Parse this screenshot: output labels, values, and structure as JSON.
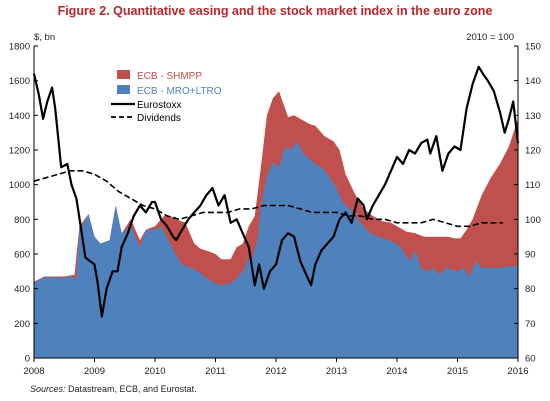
{
  "title": "Figure 2. Quantitative easing and the stock market index in the euro zone",
  "source_prefix": "Sources:",
  "source_text": " Datastream, ECB, and Eurostat.",
  "colors": {
    "shmpp": "#c0504d",
    "mro": "#4f81bd",
    "title": "#b8262a",
    "eurostoxx": "#000000",
    "dividends": "#000000",
    "legend_shmpp_text": "#c0504d",
    "legend_mro_text": "#4f81bd"
  },
  "chart_data": {
    "type": "area",
    "title": "Figure 2. Quantitative easing and the stock market index in the euro zone",
    "y_left_unit": "$, bn",
    "y_right_unit": "2010 = 100",
    "ylim_left": [
      0,
      1800
    ],
    "ylim_right": [
      60,
      150
    ],
    "xlim": [
      2008,
      2016
    ],
    "x_ticks": [
      "2008",
      "2009",
      "2010",
      "2011",
      "2012",
      "2013",
      "2014",
      "2015",
      "2016"
    ],
    "y_left_ticks": [
      "0",
      "200",
      "400",
      "600",
      "800",
      "1000",
      "1200",
      "1400",
      "1600",
      "1800"
    ],
    "y_right_ticks": [
      "60",
      "70",
      "80",
      "90",
      "100",
      "110",
      "120",
      "130",
      "140",
      "150"
    ],
    "grid": false,
    "legend_position": "top-left",
    "series": [
      {
        "name": "ECB - SHMPP",
        "kind": "stacked-area",
        "axis": "left",
        "points": [
          [
            2008.0,
            440
          ],
          [
            2008.17,
            470
          ],
          [
            2008.33,
            470
          ],
          [
            2008.5,
            470
          ],
          [
            2008.67,
            480
          ],
          [
            2008.75,
            760
          ],
          [
            2008.9,
            830
          ],
          [
            2009.0,
            700
          ],
          [
            2009.1,
            660
          ],
          [
            2009.25,
            680
          ],
          [
            2009.35,
            880
          ],
          [
            2009.45,
            720
          ],
          [
            2009.6,
            800
          ],
          [
            2009.75,
            680
          ],
          [
            2009.85,
            740
          ],
          [
            2010.0,
            760
          ],
          [
            2010.15,
            820
          ],
          [
            2010.25,
            820
          ],
          [
            2010.35,
            800
          ],
          [
            2010.5,
            780
          ],
          [
            2010.65,
            660
          ],
          [
            2010.75,
            630
          ],
          [
            2010.85,
            620
          ],
          [
            2011.0,
            600
          ],
          [
            2011.1,
            570
          ],
          [
            2011.25,
            570
          ],
          [
            2011.35,
            640
          ],
          [
            2011.45,
            660
          ],
          [
            2011.55,
            760
          ],
          [
            2011.65,
            820
          ],
          [
            2011.75,
            1100
          ],
          [
            2011.85,
            1400
          ],
          [
            2011.95,
            1500
          ],
          [
            2012.05,
            1540
          ],
          [
            2012.2,
            1390
          ],
          [
            2012.3,
            1400
          ],
          [
            2012.4,
            1380
          ],
          [
            2012.55,
            1350
          ],
          [
            2012.65,
            1340
          ],
          [
            2012.8,
            1280
          ],
          [
            2012.95,
            1250
          ],
          [
            2013.05,
            1200
          ],
          [
            2013.15,
            1060
          ],
          [
            2013.3,
            950
          ],
          [
            2013.45,
            860
          ],
          [
            2013.6,
            820
          ],
          [
            2013.75,
            790
          ],
          [
            2013.9,
            780
          ],
          [
            2014.0,
            760
          ],
          [
            2014.15,
            730
          ],
          [
            2014.3,
            720
          ],
          [
            2014.45,
            700
          ],
          [
            2014.55,
            700
          ],
          [
            2014.7,
            700
          ],
          [
            2014.85,
            700
          ],
          [
            2014.95,
            690
          ],
          [
            2015.05,
            690
          ],
          [
            2015.15,
            740
          ],
          [
            2015.25,
            800
          ],
          [
            2015.4,
            940
          ],
          [
            2015.55,
            1040
          ],
          [
            2015.7,
            1120
          ],
          [
            2015.85,
            1220
          ],
          [
            2016.0,
            1380
          ]
        ]
      },
      {
        "name": "ECB - MRO+LTRO",
        "kind": "area",
        "axis": "left",
        "points": [
          [
            2008.0,
            440
          ],
          [
            2008.1,
            450
          ],
          [
            2008.17,
            470
          ],
          [
            2008.25,
            460
          ],
          [
            2008.33,
            470
          ],
          [
            2008.45,
            460
          ],
          [
            2008.6,
            470
          ],
          [
            2008.7,
            460
          ],
          [
            2008.75,
            740
          ],
          [
            2008.9,
            830
          ],
          [
            2009.0,
            700
          ],
          [
            2009.1,
            660
          ],
          [
            2009.25,
            680
          ],
          [
            2009.35,
            880
          ],
          [
            2009.45,
            720
          ],
          [
            2009.6,
            760
          ],
          [
            2009.75,
            640
          ],
          [
            2009.85,
            740
          ],
          [
            2010.0,
            740
          ],
          [
            2010.1,
            760
          ],
          [
            2010.25,
            660
          ],
          [
            2010.4,
            560
          ],
          [
            2010.5,
            530
          ],
          [
            2010.6,
            520
          ],
          [
            2010.75,
            490
          ],
          [
            2010.9,
            450
          ],
          [
            2011.0,
            430
          ],
          [
            2011.1,
            420
          ],
          [
            2011.25,
            430
          ],
          [
            2011.35,
            460
          ],
          [
            2011.45,
            500
          ],
          [
            2011.55,
            580
          ],
          [
            2011.6,
            560
          ],
          [
            2011.7,
            700
          ],
          [
            2011.75,
            880
          ],
          [
            2011.85,
            1050
          ],
          [
            2011.95,
            1130
          ],
          [
            2012.05,
            1100
          ],
          [
            2012.15,
            1220
          ],
          [
            2012.25,
            1200
          ],
          [
            2012.35,
            1250
          ],
          [
            2012.45,
            1180
          ],
          [
            2012.55,
            1150
          ],
          [
            2012.65,
            1120
          ],
          [
            2012.75,
            1100
          ],
          [
            2012.85,
            1060
          ],
          [
            2013.0,
            980
          ],
          [
            2013.1,
            900
          ],
          [
            2013.25,
            850
          ],
          [
            2013.4,
            780
          ],
          [
            2013.55,
            720
          ],
          [
            2013.7,
            700
          ],
          [
            2013.85,
            680
          ],
          [
            2014.0,
            660
          ],
          [
            2014.1,
            620
          ],
          [
            2014.2,
            560
          ],
          [
            2014.3,
            620
          ],
          [
            2014.4,
            520
          ],
          [
            2014.5,
            500
          ],
          [
            2014.6,
            520
          ],
          [
            2014.7,
            480
          ],
          [
            2014.8,
            520
          ],
          [
            2014.9,
            510
          ],
          [
            2015.0,
            500
          ],
          [
            2015.1,
            520
          ],
          [
            2015.2,
            470
          ],
          [
            2015.3,
            560
          ],
          [
            2015.4,
            520
          ],
          [
            2015.55,
            520
          ],
          [
            2015.7,
            520
          ],
          [
            2015.85,
            530
          ],
          [
            2016.0,
            530
          ]
        ]
      },
      {
        "name": "Eurostoxx",
        "kind": "line",
        "axis": "right",
        "points": [
          [
            2008.0,
            142
          ],
          [
            2008.08,
            136
          ],
          [
            2008.15,
            129
          ],
          [
            2008.22,
            134
          ],
          [
            2008.3,
            138
          ],
          [
            2008.35,
            132
          ],
          [
            2008.45,
            115
          ],
          [
            2008.55,
            116
          ],
          [
            2008.62,
            110
          ],
          [
            2008.7,
            106
          ],
          [
            2008.78,
            97
          ],
          [
            2008.85,
            89
          ],
          [
            2008.92,
            88
          ],
          [
            2009.0,
            87
          ],
          [
            2009.05,
            82
          ],
          [
            2009.12,
            72
          ],
          [
            2009.2,
            80
          ],
          [
            2009.3,
            85
          ],
          [
            2009.38,
            85
          ],
          [
            2009.45,
            92
          ],
          [
            2009.55,
            96
          ],
          [
            2009.65,
            101
          ],
          [
            2009.75,
            104
          ],
          [
            2009.85,
            102
          ],
          [
            2009.95,
            105
          ],
          [
            2010.0,
            105
          ],
          [
            2010.1,
            100
          ],
          [
            2010.2,
            98
          ],
          [
            2010.3,
            95
          ],
          [
            2010.35,
            94
          ],
          [
            2010.45,
            97
          ],
          [
            2010.55,
            100
          ],
          [
            2010.65,
            102
          ],
          [
            2010.75,
            104
          ],
          [
            2010.85,
            107
          ],
          [
            2010.95,
            109
          ],
          [
            2011.05,
            104
          ],
          [
            2011.15,
            107
          ],
          [
            2011.25,
            99
          ],
          [
            2011.35,
            100
          ],
          [
            2011.45,
            96
          ],
          [
            2011.55,
            92
          ],
          [
            2011.65,
            81
          ],
          [
            2011.72,
            87
          ],
          [
            2011.8,
            80
          ],
          [
            2011.9,
            85
          ],
          [
            2012.0,
            87
          ],
          [
            2012.1,
            94
          ],
          [
            2012.2,
            96
          ],
          [
            2012.3,
            95
          ],
          [
            2012.4,
            88
          ],
          [
            2012.5,
            84
          ],
          [
            2012.58,
            81
          ],
          [
            2012.65,
            87
          ],
          [
            2012.75,
            91
          ],
          [
            2012.85,
            93
          ],
          [
            2012.95,
            95
          ],
          [
            2013.05,
            100
          ],
          [
            2013.15,
            102
          ],
          [
            2013.25,
            99
          ],
          [
            2013.35,
            106
          ],
          [
            2013.45,
            104
          ],
          [
            2013.5,
            100
          ],
          [
            2013.6,
            104
          ],
          [
            2013.7,
            107
          ],
          [
            2013.8,
            110
          ],
          [
            2013.9,
            114
          ],
          [
            2014.0,
            118
          ],
          [
            2014.1,
            116
          ],
          [
            2014.2,
            120
          ],
          [
            2014.3,
            119
          ],
          [
            2014.4,
            122
          ],
          [
            2014.5,
            123
          ],
          [
            2014.55,
            119
          ],
          [
            2014.65,
            124
          ],
          [
            2014.75,
            114
          ],
          [
            2014.85,
            119
          ],
          [
            2014.95,
            121
          ],
          [
            2015.05,
            120
          ],
          [
            2015.15,
            132
          ],
          [
            2015.25,
            139
          ],
          [
            2015.35,
            144
          ],
          [
            2015.42,
            142
          ],
          [
            2015.5,
            140
          ],
          [
            2015.6,
            137
          ],
          [
            2015.7,
            131
          ],
          [
            2015.78,
            125
          ],
          [
            2015.85,
            129
          ],
          [
            2015.92,
            134
          ],
          [
            2016.0,
            122
          ]
        ]
      },
      {
        "name": "Dividends",
        "kind": "line-dashed",
        "axis": "right",
        "points": [
          [
            2008.0,
            111
          ],
          [
            2008.2,
            112
          ],
          [
            2008.4,
            113
          ],
          [
            2008.6,
            114
          ],
          [
            2008.8,
            114
          ],
          [
            2009.0,
            113
          ],
          [
            2009.2,
            111
          ],
          [
            2009.4,
            108
          ],
          [
            2009.6,
            106
          ],
          [
            2009.8,
            104
          ],
          [
            2010.0,
            103
          ],
          [
            2010.2,
            101
          ],
          [
            2010.4,
            100
          ],
          [
            2010.6,
            101
          ],
          [
            2010.8,
            102
          ],
          [
            2011.0,
            102
          ],
          [
            2011.2,
            102
          ],
          [
            2011.4,
            103
          ],
          [
            2011.6,
            103
          ],
          [
            2011.8,
            104
          ],
          [
            2012.0,
            104
          ],
          [
            2012.2,
            104
          ],
          [
            2012.4,
            103
          ],
          [
            2012.6,
            102
          ],
          [
            2012.8,
            102
          ],
          [
            2013.0,
            102
          ],
          [
            2013.2,
            101
          ],
          [
            2013.4,
            101
          ],
          [
            2013.6,
            100
          ],
          [
            2013.8,
            100
          ],
          [
            2014.0,
            99
          ],
          [
            2014.2,
            99
          ],
          [
            2014.4,
            99
          ],
          [
            2014.6,
            100
          ],
          [
            2014.8,
            99
          ],
          [
            2015.0,
            98
          ],
          [
            2015.2,
            98
          ],
          [
            2015.4,
            99
          ],
          [
            2015.6,
            99
          ],
          [
            2015.75,
            99
          ]
        ]
      }
    ]
  }
}
